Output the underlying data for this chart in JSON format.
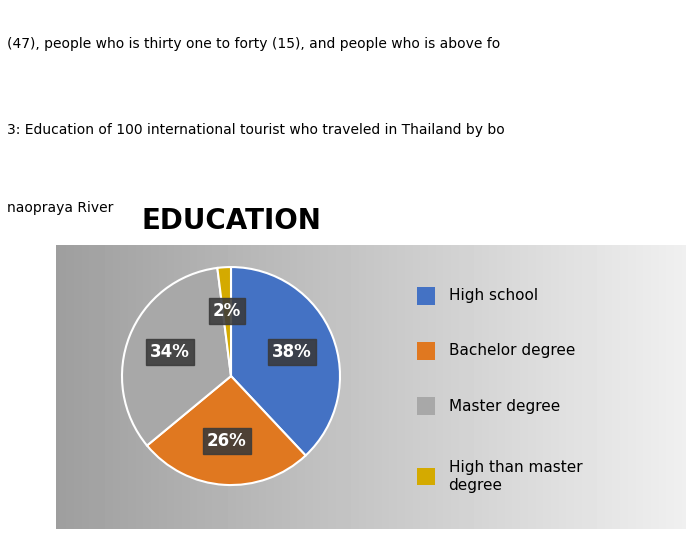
{
  "title": "EDUCATION",
  "labels": [
    "High school",
    "Bachelor degree",
    "Master degree",
    "High than master\ndegree"
  ],
  "values": [
    38,
    26,
    34,
    2
  ],
  "colors": [
    "#4472C4",
    "#E07820",
    "#A8A8A8",
    "#D4AA00"
  ],
  "pct_labels": [
    "38%",
    "26%",
    "34%",
    "2%"
  ],
  "title_fontsize": 20,
  "label_fontsize": 11,
  "pct_fontsize": 12,
  "top_text1": "(47), people who is thirty one to forty (15), and people who is above fo",
  "top_text2": "3: Education of 100 international tourist who traveled in Thailand by bo",
  "top_text3": "naopraya River"
}
